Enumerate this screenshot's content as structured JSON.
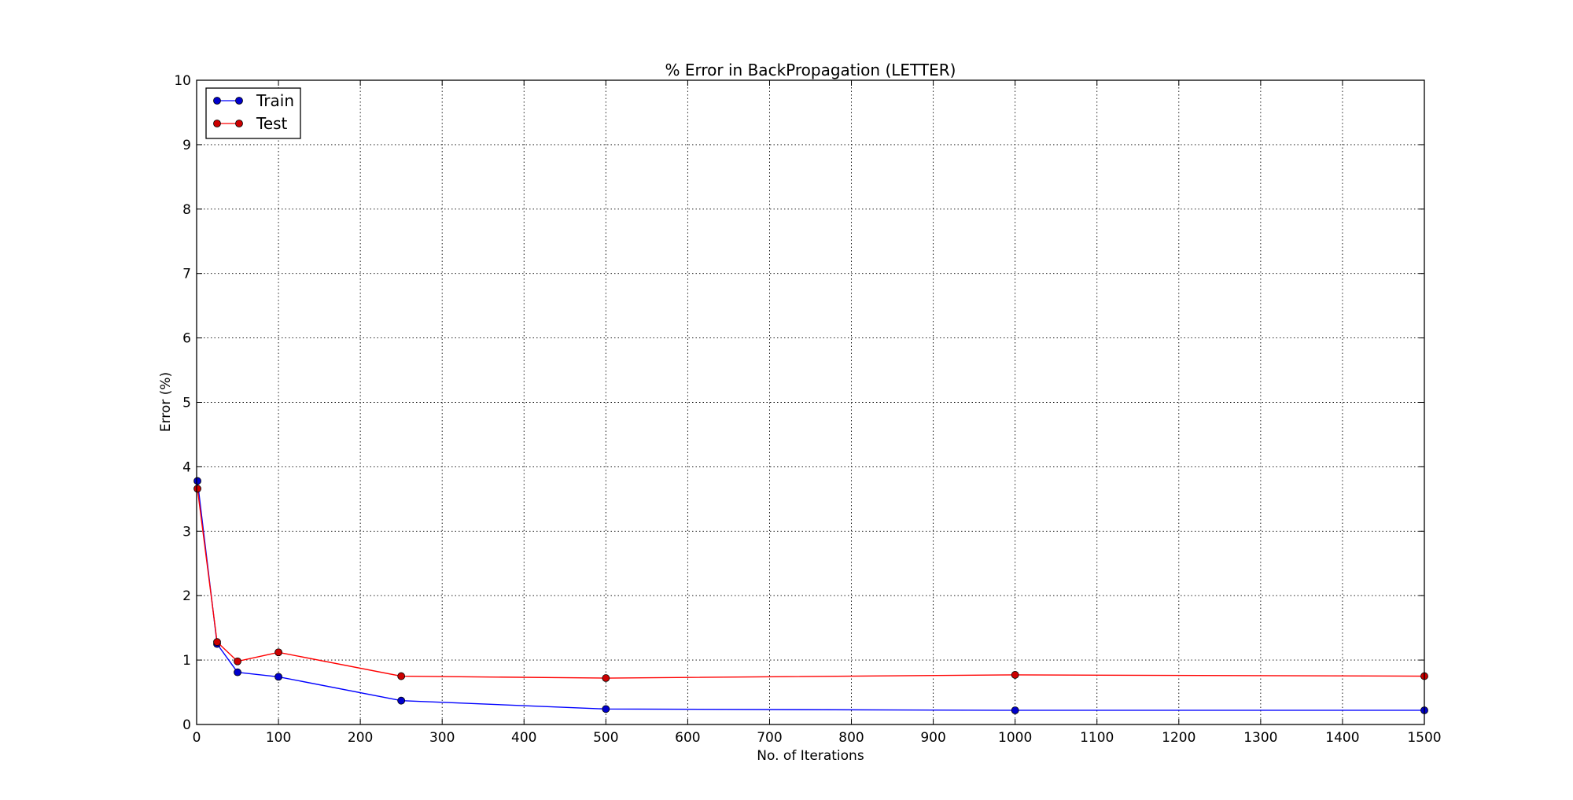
{
  "chart_data": {
    "type": "line",
    "title": "% Error in BackPropagation (LETTER)",
    "xlabel": "No. of Iterations",
    "ylabel": "Error (%)",
    "xlim": [
      0,
      1500
    ],
    "ylim": [
      0,
      10
    ],
    "xticks": [
      0,
      100,
      200,
      300,
      400,
      500,
      600,
      700,
      800,
      900,
      1000,
      1100,
      1200,
      1300,
      1400,
      1500
    ],
    "yticks": [
      0,
      1,
      2,
      3,
      4,
      5,
      6,
      7,
      8,
      9,
      10
    ],
    "grid": true,
    "legend_position": "top-left",
    "series": [
      {
        "name": "Train",
        "color": "#0000ff",
        "marker_color": "#0000cc",
        "x": [
          1,
          25,
          50,
          100,
          250,
          500,
          1000,
          1500
        ],
        "y": [
          3.78,
          1.25,
          0.81,
          0.74,
          0.37,
          0.24,
          0.22,
          0.22
        ]
      },
      {
        "name": "Test",
        "color": "#ff0000",
        "marker_color": "#cc0000",
        "x": [
          1,
          25,
          50,
          100,
          250,
          500,
          1000,
          1500
        ],
        "y": [
          3.66,
          1.28,
          0.98,
          1.12,
          0.75,
          0.72,
          0.77,
          0.75
        ]
      }
    ]
  }
}
